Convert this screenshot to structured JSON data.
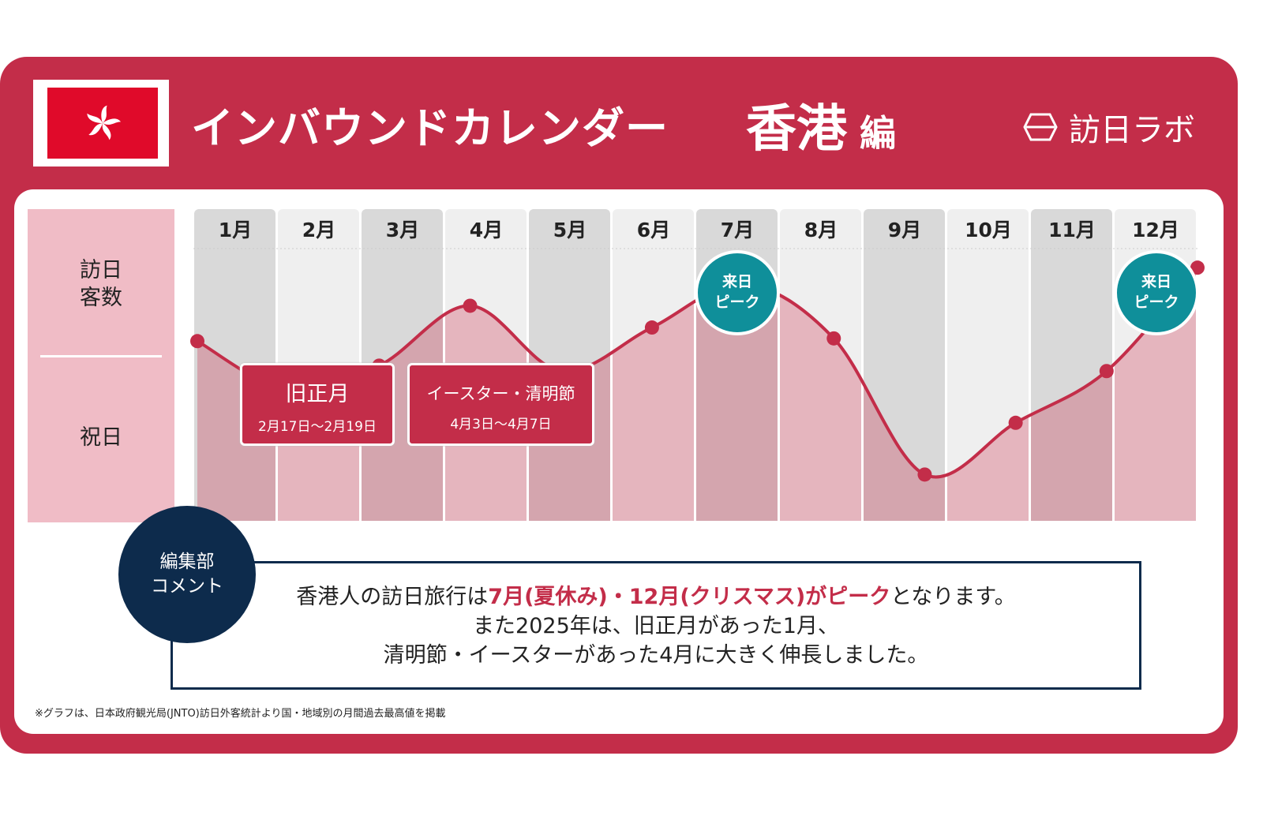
{
  "header": {
    "title": "インバウンドカレンダー",
    "region": "香港",
    "region_suffix": "編",
    "logo_text": "訪日ラボ"
  },
  "row_labels": {
    "visitors": "訪日\n客数",
    "holidays": "祝日"
  },
  "chart_data": {
    "type": "area",
    "title": "インバウンドカレンダー 香港 編",
    "categories": [
      "1月",
      "2月",
      "3月",
      "4月",
      "5月",
      "6月",
      "7月",
      "8月",
      "9月",
      "10月",
      "11月",
      "12月"
    ],
    "values": [
      66,
      48,
      57,
      79,
      55,
      71,
      87,
      67,
      17,
      36,
      55,
      93
    ],
    "ylabel": "訪日客数",
    "y_axis_shown": false,
    "ylim": [
      0,
      100
    ],
    "grid": false,
    "colors": {
      "line": "#c32d49",
      "fill": "#e5b5be",
      "column_dark": "#d9d9d9",
      "column_light": "#efefef",
      "peak": "#0f8f9a"
    },
    "peaks": [
      {
        "month": "7月",
        "label": "来日\nピーク"
      },
      {
        "month": "12月",
        "label": "来日\nピーク"
      }
    ],
    "holidays": [
      {
        "name": "旧正月",
        "dates": "2月17日～2月19日"
      },
      {
        "name": "イースター・清明節",
        "dates": "4月3日～4月7日"
      }
    ]
  },
  "comment": {
    "badge": "編集部\nコメント",
    "line1_pre": "香港人の訪日旅行は",
    "line1_hl": "7月(夏休み)・12月(クリスマス)がピーク",
    "line1_post": "となります。",
    "line2": "また2025年は、旧正月があった1月、",
    "line3": "清明節・イースターがあった4月に大きく伸長しました。"
  },
  "footnote": "※グラフは、日本政府観光局(JNTO)訪日外客統計より国・地域別の月間過去最高値を掲載"
}
